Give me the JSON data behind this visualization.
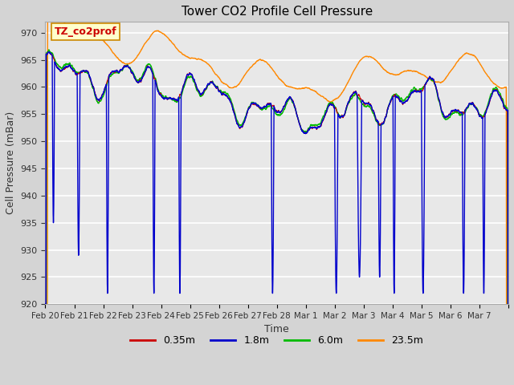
{
  "title": "Tower CO2 Profile Cell Pressure",
  "xlabel": "Time",
  "ylabel": "Cell Pressure (mBar)",
  "ylim": [
    920,
    972
  ],
  "yticks": [
    920,
    925,
    930,
    935,
    940,
    945,
    950,
    955,
    960,
    965,
    970
  ],
  "fig_bg_color": "#d4d4d4",
  "plot_bg_color": "#e8e8e8",
  "line_colors": {
    "0.35m": "#cc0000",
    "1.8m": "#0000cc",
    "6.0m": "#00bb00",
    "23.5m": "#ff8800"
  },
  "annotation_text": "TZ_co2prof",
  "annotation_color": "#cc0000",
  "annotation_bg": "#ffffcc",
  "annotation_border": "#cc8800",
  "x_tick_labels": [
    "Feb 20",
    "Feb 21",
    "Feb 22",
    "Feb 23",
    "Feb 24",
    "Feb 25",
    "Feb 26",
    "Feb 27",
    "Feb 28",
    "Mar 1",
    "Mar 2",
    "Mar 3",
    "Mar 4",
    "Mar 5",
    "Mar 6",
    "Mar 7"
  ],
  "n_points": 4032,
  "seed": 42
}
